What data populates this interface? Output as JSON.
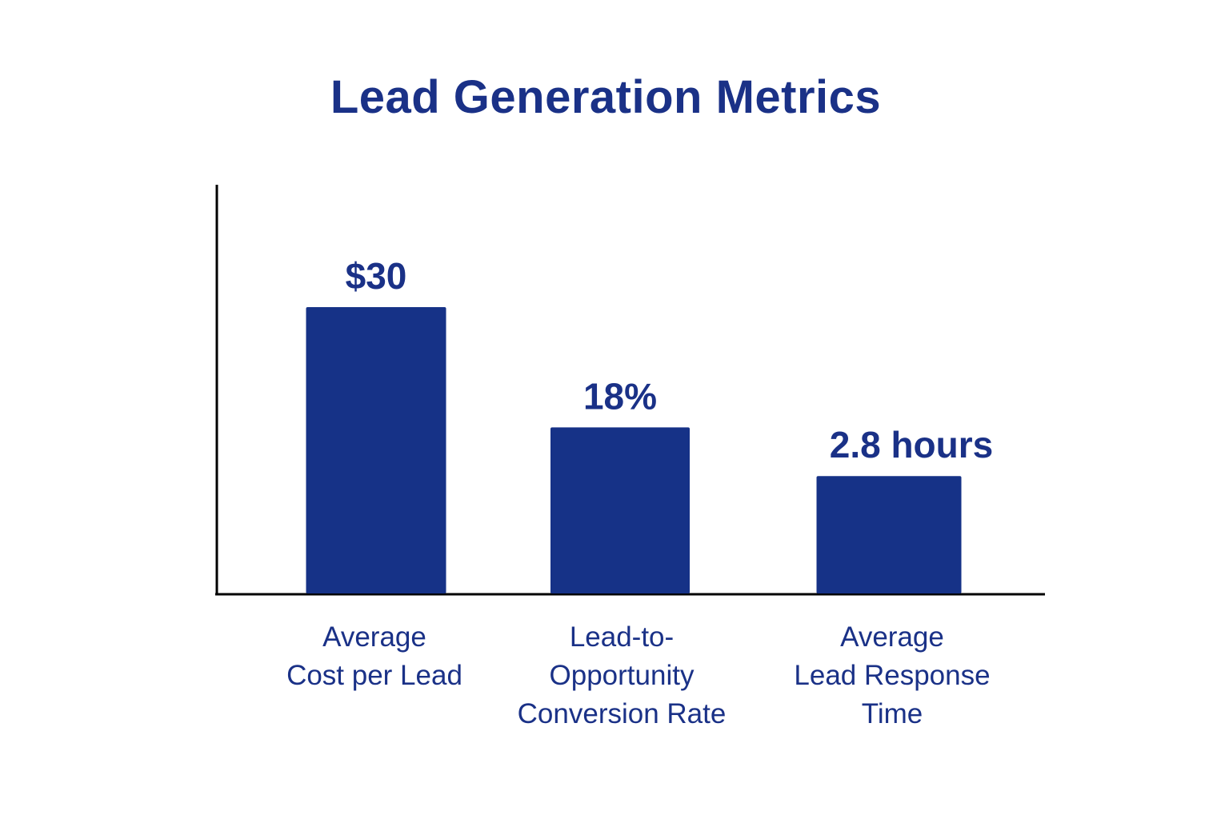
{
  "chart_data": {
    "type": "bar",
    "title": "Lead Generation Metrics",
    "categories": [
      [
        "Average",
        "Cost per Lead"
      ],
      [
        "Lead-to-",
        "Opportunity",
        "Conversion Rate"
      ],
      [
        "Average",
        "Lead Response",
        "Time"
      ]
    ],
    "values": [
      30,
      18,
      2.8
    ],
    "units": [
      "$",
      "%",
      "hours"
    ],
    "data_labels": [
      "$30",
      "18%",
      "2.8 hours"
    ],
    "display_levels": [
      1.0,
      0.58,
      0.41
    ],
    "xlabel": "",
    "ylabel": "",
    "grid": false,
    "bar_color": "#163287",
    "text_color": "#1a3187"
  }
}
